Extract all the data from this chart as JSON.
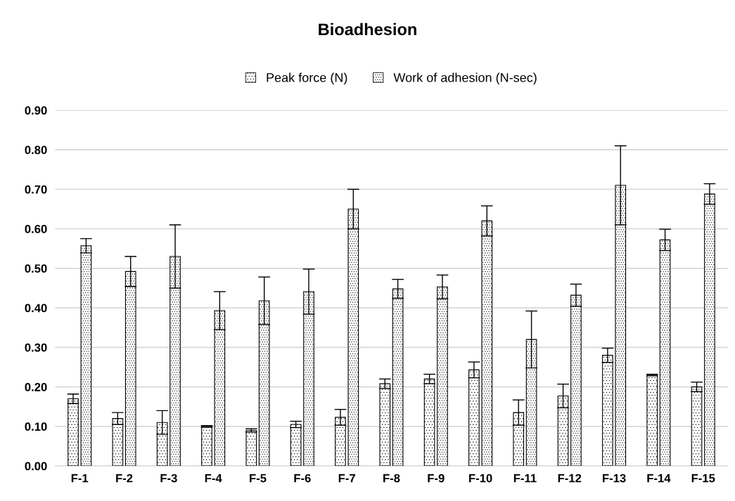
{
  "chart_data": {
    "type": "bar",
    "title": "Bioadhesion",
    "categories": [
      "F-1",
      "F-2",
      "F-3",
      "F-4",
      "F-5",
      "F-6",
      "F-7",
      "F-8",
      "F-9",
      "F-10",
      "F-11",
      "F-12",
      "F-13",
      "F-14",
      "F-15"
    ],
    "series": [
      {
        "name": "Peak force (N)",
        "color": "#000000",
        "values": [
          0.17,
          0.12,
          0.11,
          0.1,
          0.09,
          0.105,
          0.123,
          0.208,
          0.22,
          0.243,
          0.135,
          0.177,
          0.28,
          0.23,
          0.2
        ],
        "errors": [
          0.012,
          0.015,
          0.03,
          0.002,
          0.004,
          0.008,
          0.02,
          0.012,
          0.012,
          0.02,
          0.032,
          0.03,
          0.018,
          0.002,
          0.012
        ]
      },
      {
        "name": "Work of adhesion (N-sec)",
        "color": "#000000",
        "values": [
          0.557,
          0.492,
          0.53,
          0.393,
          0.418,
          0.441,
          0.65,
          0.448,
          0.453,
          0.62,
          0.32,
          0.432,
          0.71,
          0.572,
          0.688
        ],
        "errors": [
          0.018,
          0.038,
          0.08,
          0.048,
          0.06,
          0.057,
          0.05,
          0.024,
          0.03,
          0.038,
          0.072,
          0.028,
          0.1,
          0.027,
          0.026
        ]
      }
    ],
    "ylim": [
      0,
      0.9
    ],
    "yticks": [
      {
        "value": 0,
        "label": "0.00"
      },
      {
        "value": 0.1,
        "label": "0.10"
      },
      {
        "value": 0.2,
        "label": "0.20"
      },
      {
        "value": 0.3,
        "label": "0.30"
      },
      {
        "value": 0.4,
        "label": "0.40"
      },
      {
        "value": 0.5,
        "label": "0.50"
      },
      {
        "value": 0.6,
        "label": "0.60"
      },
      {
        "value": 0.7,
        "label": "0.70"
      },
      {
        "value": 0.8,
        "label": "0.80"
      },
      {
        "value": 0.9,
        "label": "0.90"
      }
    ],
    "grid": "y",
    "legend": "top"
  }
}
